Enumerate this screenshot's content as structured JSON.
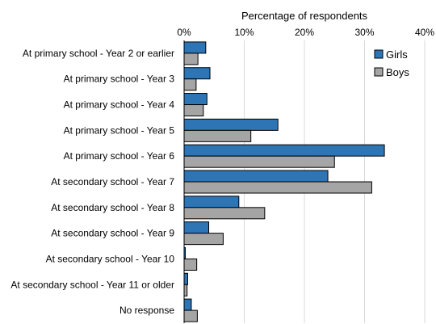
{
  "chart_data": {
    "type": "bar",
    "orientation": "horizontal",
    "title": "",
    "xlabel": "Percentage of respondents",
    "xaxis_position": "top",
    "ylabel": "",
    "xlim": [
      0,
      40
    ],
    "x_ticks": [
      0,
      10,
      20,
      30,
      40
    ],
    "x_tick_labels": [
      "0%",
      "10%",
      "20%",
      "30%",
      "40%"
    ],
    "grid": true,
    "legend_position": "top-right",
    "categories": [
      "At primary school - Year 2 or earlier",
      "At primary school - Year 3",
      "At primary school - Year 4",
      "At primary school - Year 5",
      "At primary school - Year 6",
      "At secondary school - Year 7",
      "At secondary school - Year 8",
      "At secondary school - Year 9",
      "At secondary school - Year 10",
      "At secondary school - Year 11 or older",
      "No response"
    ],
    "series": [
      {
        "name": "Girls",
        "color": "#2e75b6",
        "values": [
          3.6,
          4.3,
          3.8,
          15.6,
          33.3,
          23.9,
          9.1,
          4.1,
          0.2,
          0.6,
          1.2
        ]
      },
      {
        "name": "Boys",
        "color": "#a5a5a5",
        "values": [
          2.3,
          2.0,
          3.2,
          11.1,
          25.0,
          31.2,
          13.4,
          6.5,
          2.1,
          0.5,
          2.2
        ]
      }
    ]
  }
}
